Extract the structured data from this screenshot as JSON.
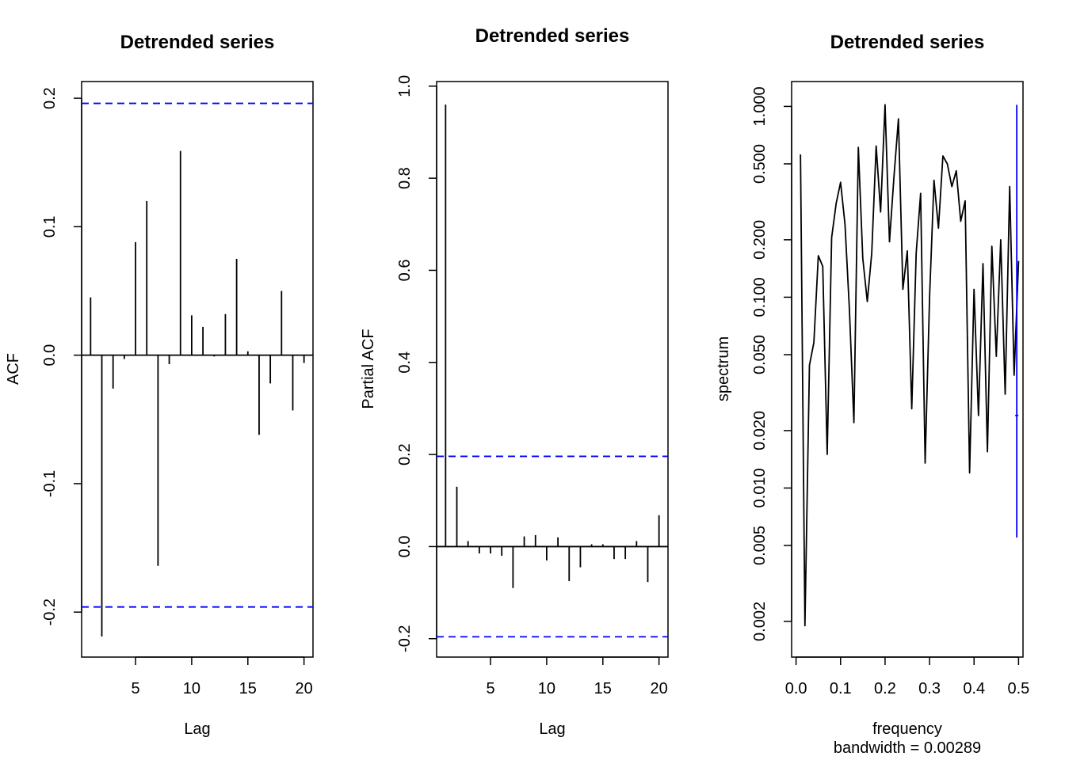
{
  "chart_data": [
    {
      "type": "bar",
      "title": "Detrended series",
      "xlabel": "Lag",
      "ylabel": "ACF",
      "xlim": [
        0.2,
        20.8
      ],
      "ylim": [
        -0.235,
        0.213
      ],
      "x_ticks": [
        "5",
        "10",
        "15",
        "20"
      ],
      "y_ticks": [
        "-0.2",
        "-0.1",
        "0.0",
        "0.1",
        "0.2"
      ],
      "x_tick_values": [
        5,
        10,
        15,
        20
      ],
      "y_tick_values": [
        -0.2,
        -0.1,
        0.0,
        0.1,
        0.2
      ],
      "lags": [
        1,
        2,
        3,
        4,
        5,
        6,
        7,
        8,
        9,
        10,
        11,
        12,
        13,
        14,
        15,
        16,
        17,
        18,
        19,
        20
      ],
      "values": [
        0.045,
        -0.219,
        -0.026,
        -0.003,
        0.088,
        0.12,
        -0.164,
        -0.007,
        0.159,
        0.031,
        0.022,
        -0.001,
        0.032,
        0.075,
        0.003,
        -0.062,
        -0.022,
        0.05,
        -0.043,
        -0.006
      ],
      "confidence_limits": [
        0.196,
        -0.196
      ],
      "confidence_color": "#0000ff",
      "grid": false
    },
    {
      "type": "bar",
      "title": "Detrended series",
      "xlabel": "Lag",
      "ylabel": "Partial ACF",
      "xlim": [
        0.2,
        20.8
      ],
      "ylim": [
        -0.24,
        1.01
      ],
      "x_ticks": [
        "5",
        "10",
        "15",
        "20"
      ],
      "y_ticks": [
        "-0.2",
        "0.0",
        "0.2",
        "0.4",
        "0.6",
        "0.8",
        "1.0"
      ],
      "x_tick_values": [
        5,
        10,
        15,
        20
      ],
      "y_tick_values": [
        -0.2,
        0.0,
        0.2,
        0.4,
        0.6,
        0.8,
        1.0
      ],
      "lags": [
        1,
        2,
        3,
        4,
        5,
        6,
        7,
        8,
        9,
        10,
        11,
        12,
        13,
        14,
        15,
        16,
        17,
        18,
        19,
        20
      ],
      "values": [
        0.96,
        0.13,
        0.012,
        -0.015,
        -0.015,
        -0.02,
        -0.09,
        0.022,
        0.025,
        -0.03,
        0.02,
        -0.075,
        -0.045,
        0.005,
        0.005,
        -0.027,
        -0.027,
        0.012,
        -0.077,
        0.068
      ],
      "confidence_limits": [
        0.196,
        -0.196
      ],
      "confidence_color": "#0000ff",
      "grid": false
    },
    {
      "type": "line",
      "title": "Detrended series",
      "xlabel": "frequency",
      "xlabel2": "bandwidth = 0.00289",
      "ylabel": "spectrum",
      "y_scale": "log",
      "xlim": [
        -0.01,
        0.51
      ],
      "ylim": [
        0.0013,
        1.35
      ],
      "x_ticks": [
        "0.0",
        "0.1",
        "0.2",
        "0.3",
        "0.4",
        "0.5"
      ],
      "y_ticks": [
        "0.002",
        "0.005",
        "0.010",
        "0.020",
        "0.050",
        "0.100",
        "0.200",
        "0.500",
        "1.000"
      ],
      "x_tick_values": [
        0.0,
        0.1,
        0.2,
        0.3,
        0.4,
        0.5
      ],
      "y_tick_values": [
        0.002,
        0.005,
        0.01,
        0.02,
        0.05,
        0.1,
        0.2,
        0.5,
        1.0
      ],
      "x": [
        0.01,
        0.02,
        0.03,
        0.04,
        0.05,
        0.06,
        0.07,
        0.08,
        0.09,
        0.1,
        0.11,
        0.12,
        0.13,
        0.14,
        0.15,
        0.16,
        0.17,
        0.18,
        0.19,
        0.2,
        0.21,
        0.22,
        0.23,
        0.24,
        0.25,
        0.26,
        0.27,
        0.28,
        0.29,
        0.3,
        0.31,
        0.32,
        0.33,
        0.34,
        0.35,
        0.36,
        0.37,
        0.38,
        0.39,
        0.4,
        0.41,
        0.42,
        0.43,
        0.44,
        0.45,
        0.46,
        0.47,
        0.48,
        0.49,
        0.5
      ],
      "y": [
        0.56,
        0.0019,
        0.044,
        0.058,
        0.165,
        0.145,
        0.015,
        0.205,
        0.31,
        0.4,
        0.24,
        0.085,
        0.022,
        0.61,
        0.16,
        0.095,
        0.17,
        0.62,
        0.28,
        1.02,
        0.195,
        0.43,
        0.86,
        0.11,
        0.175,
        0.026,
        0.17,
        0.35,
        0.0135,
        0.1,
        0.41,
        0.23,
        0.55,
        0.5,
        0.38,
        0.46,
        0.25,
        0.32,
        0.012,
        0.11,
        0.024,
        0.15,
        0.0155,
        0.185,
        0.049,
        0.2,
        0.031,
        0.38,
        0.039,
        0.155
      ],
      "bandwidth_bar": {
        "x": 0.496,
        "y_low": 0.0055,
        "y_high": 1.02,
        "y_center": 0.024,
        "color": "#0000ff"
      },
      "grid": false
    }
  ]
}
